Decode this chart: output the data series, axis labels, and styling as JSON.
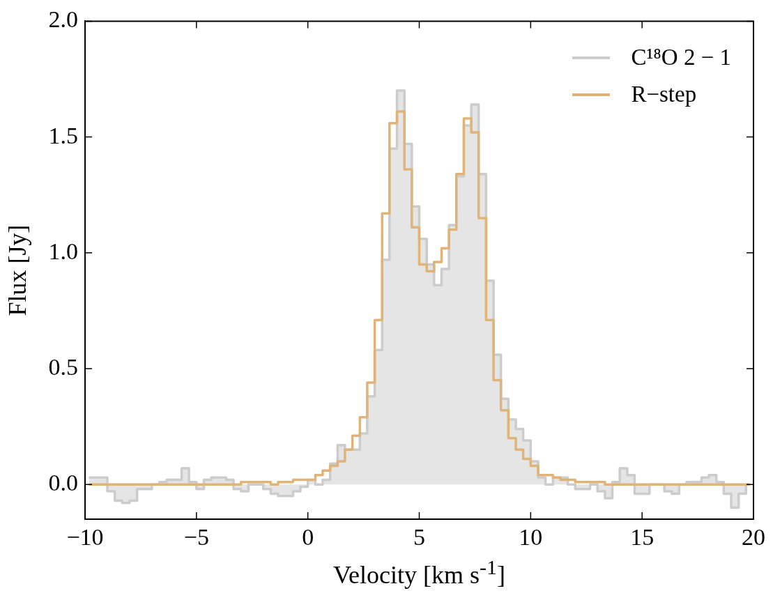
{
  "chart_data": {
    "type": "step",
    "xlabel": "Velocity [km s$^{-1}$]",
    "ylabel": "Flux [Jy]",
    "x": [
      -9.83,
      -9.5,
      -9.17,
      -8.83,
      -8.5,
      -8.17,
      -7.83,
      -7.5,
      -7.17,
      -6.83,
      -6.5,
      -6.17,
      -5.83,
      -5.5,
      -5.17,
      -4.83,
      -4.5,
      -4.17,
      -3.83,
      -3.5,
      -3.17,
      -2.83,
      -2.5,
      -2.17,
      -1.83,
      -1.5,
      -1.17,
      -0.83,
      -0.5,
      -0.17,
      0.17,
      0.5,
      0.83,
      1.17,
      1.5,
      1.83,
      2.17,
      2.5,
      2.83,
      3.17,
      3.5,
      3.83,
      4.17,
      4.5,
      4.83,
      5.17,
      5.5,
      5.83,
      6.17,
      6.5,
      6.83,
      7.17,
      7.5,
      7.83,
      8.17,
      8.5,
      8.83,
      9.17,
      9.5,
      9.83,
      10.17,
      10.5,
      10.83,
      11.17,
      11.5,
      11.83,
      12.17,
      12.5,
      12.83,
      13.17,
      13.5,
      13.83,
      14.17,
      14.5,
      14.83,
      15.17,
      15.5,
      15.83,
      16.17,
      16.5,
      16.83,
      17.17,
      17.5,
      17.83,
      18.17,
      18.5,
      18.83,
      19.17,
      19.5,
      19.83
    ],
    "series": [
      {
        "name": "C¹⁸O 2 − 1",
        "type": "area",
        "color": "#cccccc",
        "values": [
          0.03,
          0.03,
          0.03,
          -0.03,
          -0.07,
          -0.08,
          -0.07,
          -0.02,
          -0.02,
          0.0,
          0.01,
          0.02,
          0.02,
          0.07,
          0.01,
          -0.02,
          0.02,
          0.03,
          0.03,
          0.02,
          -0.02,
          -0.03,
          0.0,
          0.0,
          -0.02,
          -0.04,
          -0.05,
          -0.05,
          -0.03,
          -0.01,
          0.02,
          0.0,
          0.02,
          0.09,
          0.17,
          0.15,
          0.15,
          0.22,
          0.38,
          0.58,
          0.97,
          1.45,
          1.7,
          1.47,
          1.2,
          1.06,
          0.95,
          0.86,
          0.93,
          1.12,
          1.33,
          1.55,
          1.64,
          1.34,
          0.88,
          0.56,
          0.37,
          0.28,
          0.24,
          0.19,
          0.1,
          0.03,
          0.0,
          0.03,
          0.03,
          0.0,
          -0.02,
          -0.02,
          0.0,
          -0.03,
          -0.06,
          0.01,
          0.07,
          0.04,
          -0.04,
          -0.04,
          0.0,
          0.0,
          -0.03,
          -0.04,
          0.0,
          0.01,
          0.01,
          0.03,
          0.04,
          0.01,
          -0.04,
          -0.1,
          -0.04,
          0.0
        ]
      },
      {
        "name": "R−step",
        "type": "step",
        "color": "#e0b478",
        "values": [
          0,
          0,
          0,
          0,
          0,
          0,
          0,
          0,
          0,
          0,
          0,
          0,
          0,
          0,
          0,
          0,
          0,
          0,
          0,
          0,
          0.0,
          0.01,
          0.01,
          0.01,
          0.01,
          0.0,
          0.01,
          0.01,
          0.02,
          0.02,
          0.02,
          0.04,
          0.06,
          0.08,
          0.1,
          0.15,
          0.21,
          0.29,
          0.44,
          0.71,
          1.17,
          1.56,
          1.61,
          1.36,
          1.11,
          0.95,
          0.92,
          0.96,
          1.02,
          1.1,
          1.34,
          1.58,
          1.52,
          1.15,
          0.71,
          0.45,
          0.32,
          0.2,
          0.15,
          0.11,
          0.08,
          0.04,
          0.04,
          0.03,
          0.02,
          0.02,
          0.01,
          0.01,
          0.01,
          0.01,
          0,
          0,
          0,
          0,
          0,
          0,
          0,
          0,
          0,
          0,
          0,
          0,
          0,
          0,
          0,
          0,
          0,
          0,
          0,
          0
        ]
      }
    ],
    "xlim": [
      -10,
      20
    ],
    "ylim": [
      -0.15,
      2.0
    ],
    "xticks": [
      {
        "value": -10,
        "label": "−10"
      },
      {
        "value": -5,
        "label": "−5"
      },
      0,
      5,
      10,
      15,
      20
    ],
    "yticks": [
      {
        "value": 0,
        "label": "0.0"
      },
      {
        "value": 0.5,
        "label": "0.5"
      },
      {
        "value": 1,
        "label": "1.0"
      },
      {
        "value": 1.5,
        "label": "1.5"
      },
      {
        "value": 2,
        "label": "2.0"
      }
    ],
    "legend": "top right"
  }
}
